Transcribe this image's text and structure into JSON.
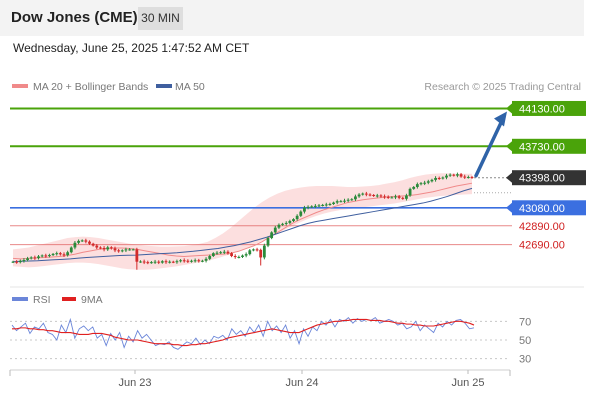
{
  "header": {
    "title": "Dow Jones (CME)",
    "timeframe": "30 MIN"
  },
  "datetime": "Wednesday, June 25, 2025 1:47:52 AM CET",
  "legend": {
    "ma20": "MA 20 + Bollinger Bands",
    "ma50": "MA 50",
    "credit": "Research © 2025 Trading Central"
  },
  "rsi_legend": {
    "rsi": "RSI",
    "ma9": "9MA"
  },
  "colors": {
    "up": "#2a8a3a",
    "down": "#d22a2a",
    "ma20": "#f08a8a",
    "ma50": "#3f5f9f",
    "band": "#fbd4d4",
    "green_level": "#4aa30a",
    "blue_level": "#3b6fe0",
    "red_level": "#e06060",
    "last": "#333333",
    "arrow": "#2f63a8",
    "rsi": "#6b86d9",
    "rsi_ma": "#e02020"
  },
  "chart_data": [
    {
      "type": "candlestick",
      "title": "Dow Jones (CME)",
      "timeframe": "30 MIN",
      "x_tick_labels": [
        "Jun 23",
        "Jun 24",
        "Jun 25"
      ],
      "ylim": [
        42380,
        44230
      ],
      "levels": [
        {
          "label": "44130.00",
          "value": 44130,
          "kind": "resistance-target"
        },
        {
          "label": "43730.00",
          "value": 43730,
          "kind": "resistance"
        },
        {
          "label": "43398.00",
          "value": 43398,
          "kind": "last"
        },
        {
          "label": "43080.00",
          "value": 43080,
          "kind": "pivot"
        },
        {
          "label": "42890.00",
          "value": 42890,
          "kind": "support"
        },
        {
          "label": "42690.00",
          "value": 42690,
          "kind": "support"
        }
      ],
      "close": [
        42510,
        42505,
        42520,
        42528,
        42545,
        42555,
        42548,
        42566,
        42576,
        42570,
        42580,
        42592,
        42600,
        42588,
        42580,
        42610,
        42660,
        42710,
        42730,
        42735,
        42722,
        42700,
        42680,
        42660,
        42655,
        42640,
        42662,
        42650,
        42630,
        42620,
        42630,
        42640,
        42640,
        42640,
        42510,
        42512,
        42505,
        42500,
        42505,
        42510,
        42500,
        42515,
        42505,
        42510,
        42505,
        42515,
        42525,
        42520,
        42512,
        42520,
        42525,
        42515,
        42520,
        42540,
        42570,
        42600,
        42605,
        42610,
        42615,
        42600,
        42570,
        42560,
        42560,
        42575,
        42590,
        42630,
        42640,
        42635,
        42555,
        42680,
        42760,
        42820,
        42870,
        42900,
        42910,
        42920,
        42940,
        42960,
        42995,
        43040,
        43080,
        43090,
        43095,
        43100,
        43105,
        43110,
        43115,
        43120,
        43135,
        43150,
        43150,
        43155,
        43165,
        43170,
        43200,
        43220,
        43230,
        43220,
        43215,
        43205,
        43210,
        43200,
        43195,
        43190,
        43190,
        43200,
        43185,
        43175,
        43210,
        43280,
        43300,
        43330,
        43340,
        43345,
        43360,
        43375,
        43395,
        43390,
        43400,
        43420,
        43430,
        43420,
        43435,
        43410,
        43405,
        43405,
        43398
      ],
      "ma20": [
        42545,
        42540,
        42545,
        42550,
        42555,
        42560,
        42565,
        42575,
        42590,
        42610,
        42625,
        42640,
        42650,
        42655,
        42655,
        42650,
        42640,
        42625,
        42610,
        42595,
        42580,
        42570,
        42565,
        42570,
        42575,
        42580,
        42585,
        42590,
        42600,
        42620,
        42650,
        42680,
        42720,
        42770,
        42820,
        42870,
        42920,
        42960,
        42995,
        43030,
        43060,
        43085,
        43110,
        43135,
        43150,
        43165,
        43175,
        43185,
        43195,
        43200,
        43205,
        43210,
        43220,
        43235,
        43250,
        43270,
        43290,
        43310,
        43325,
        43340
      ],
      "ma50": [
        42510,
        42515,
        42518,
        42520,
        42525,
        42530,
        42535,
        42540,
        42548,
        42555,
        42560,
        42565,
        42570,
        42575,
        42578,
        42580,
        42585,
        42590,
        42595,
        42600,
        42605,
        42612,
        42620,
        42630,
        42640,
        42650,
        42665,
        42680,
        42700,
        42720,
        42745,
        42770,
        42800,
        42830,
        42860,
        42890,
        42915,
        42935,
        42950,
        42965,
        42980,
        42995,
        43010,
        43025,
        43040,
        43055,
        43070,
        43085,
        43100,
        43115,
        43130,
        43150,
        43175,
        43200,
        43230,
        43260,
        43285
      ],
      "bollinger_upper": [
        42640,
        42650,
        42660,
        42680,
        42700,
        42720,
        42740,
        42760,
        42770,
        42775,
        42770,
        42760,
        42745,
        42730,
        42715,
        42700,
        42690,
        42680,
        42675,
        42670,
        42670,
        42672,
        42675,
        42685,
        42700,
        42720,
        42760,
        42810,
        42870,
        42940,
        43010,
        43080,
        43140,
        43190,
        43230,
        43260,
        43280,
        43295,
        43305,
        43310,
        43310,
        43310,
        43305,
        43300,
        43300,
        43305,
        43310,
        43320,
        43335,
        43350,
        43370,
        43395,
        43415,
        43430,
        43440,
        43445,
        43445,
        43440,
        43440,
        43440
      ],
      "bollinger_lower": [
        42460,
        42455,
        42450,
        42455,
        42465,
        42475,
        42485,
        42495,
        42500,
        42500,
        42495,
        42485,
        42470,
        42455,
        42440,
        42430,
        42425,
        42425,
        42430,
        42440,
        42450,
        42460,
        42475,
        42490,
        42505,
        42520,
        42540,
        42565,
        42590,
        42620,
        42655,
        42690,
        42730,
        42770,
        42810,
        42850,
        42890,
        42930,
        42965,
        42995,
        43020,
        43040,
        43055,
        43065,
        43075,
        43085,
        43095,
        43105,
        43115,
        43125,
        43140,
        43155,
        43170,
        43185,
        43195,
        43205,
        43210,
        43215,
        43220,
        43225
      ]
    },
    {
      "type": "line",
      "title": "RSI",
      "y_tick_labels": [
        "70",
        "50",
        "30"
      ],
      "ylim": [
        20,
        80
      ],
      "series": [
        {
          "name": "RSI",
          "values": [
            66,
            60,
            64,
            68,
            57,
            64,
            62,
            68,
            58,
            56,
            50,
            66,
            58,
            72,
            52,
            62,
            65,
            60,
            64,
            52,
            56,
            44,
            57,
            50,
            58,
            42,
            54,
            48,
            60,
            52,
            56,
            50,
            44,
            46,
            45,
            48,
            42,
            40,
            44,
            48,
            46,
            52,
            45,
            50,
            46,
            54,
            52,
            55,
            50,
            62,
            56,
            60,
            54,
            64,
            58,
            66,
            54,
            70,
            60,
            65,
            58,
            66,
            52,
            60,
            46,
            62,
            54,
            64,
            60,
            70,
            66,
            72,
            64,
            72,
            70,
            74,
            68,
            73,
            70,
            72,
            71,
            74,
            68,
            70,
            72,
            70,
            66,
            68,
            62,
            64,
            70,
            60,
            66,
            62,
            58,
            68,
            64,
            70,
            66,
            71,
            72,
            68,
            62,
            63
          ]
        },
        {
          "name": "9MA",
          "values": [
            62,
            62,
            63,
            63,
            62,
            62,
            61,
            61,
            60,
            60,
            59,
            58,
            58,
            58,
            57,
            56,
            56,
            56,
            57,
            57,
            57,
            56,
            55,
            53,
            52,
            51,
            50,
            50,
            50,
            49,
            48,
            47,
            46,
            46,
            46,
            46,
            45,
            45,
            44,
            44,
            45,
            45,
            46,
            46,
            47,
            48,
            49,
            50,
            52,
            53,
            54,
            55,
            56,
            57,
            58,
            59,
            60,
            61,
            62,
            61,
            60,
            59,
            58,
            58,
            58,
            60,
            62,
            64,
            66,
            67,
            68,
            69,
            70,
            70,
            71,
            71,
            72,
            72,
            72,
            72,
            71,
            71,
            71,
            70,
            70,
            69,
            68,
            68,
            67,
            67,
            66,
            66,
            65,
            65,
            65,
            66,
            67,
            68,
            69,
            70,
            70,
            69,
            68,
            66
          ]
        }
      ]
    }
  ]
}
